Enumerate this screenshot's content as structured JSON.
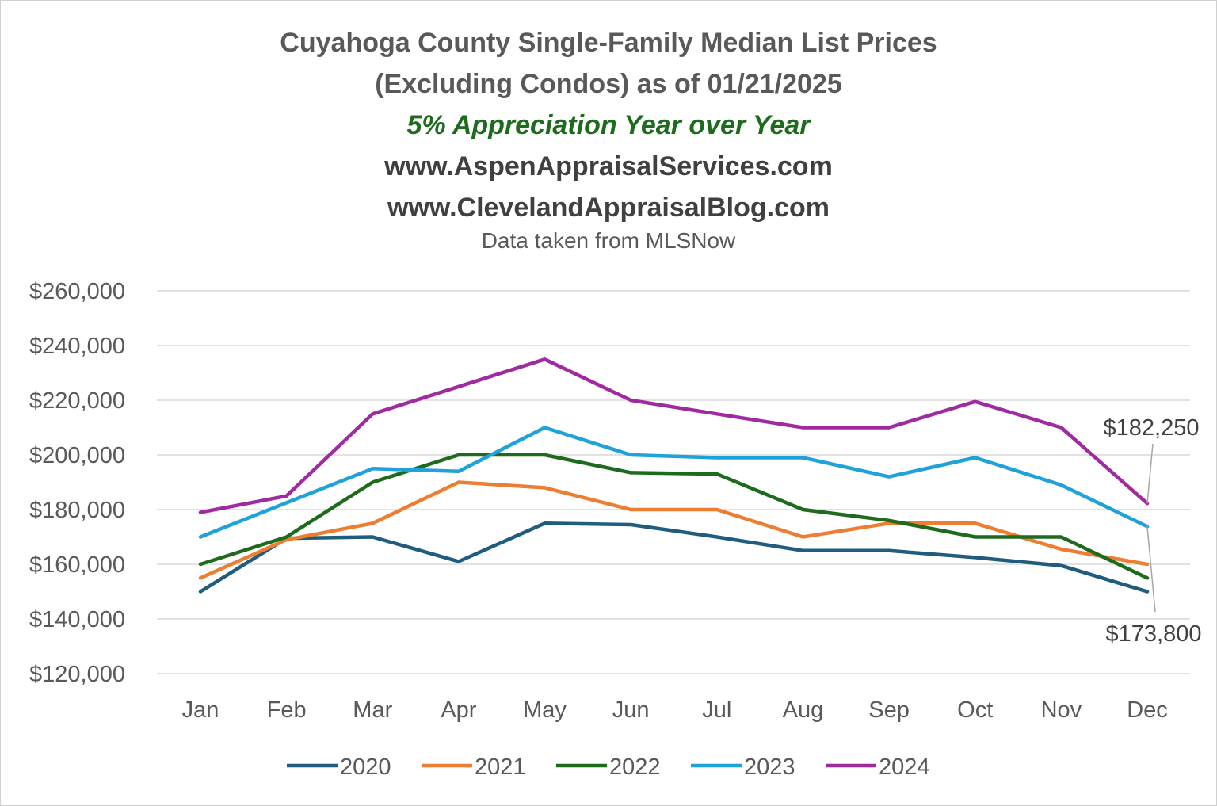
{
  "chart_data": {
    "type": "line",
    "title": "Cuyahoga  County Single-Family Median List Prices",
    "title_line2": "(Excluding Condos) as of 01/21/2025",
    "subtitle": "5% Appreciation Year over Year",
    "website1": "www.AspenAppraisalServices.com",
    "website2": "www.ClevelandAppraisalBlog.com",
    "source": "Data taken from MLSNow",
    "categories": [
      "Jan",
      "Feb",
      "Mar",
      "Apr",
      "May",
      "Jun",
      "Jul",
      "Aug",
      "Sep",
      "Oct",
      "Nov",
      "Dec"
    ],
    "ylim": [
      120000,
      260000
    ],
    "yticks": [
      120000,
      140000,
      160000,
      180000,
      200000,
      220000,
      240000,
      260000
    ],
    "ytick_labels": [
      "$120,000",
      "$140,000",
      "$160,000",
      "$180,000",
      "$200,000",
      "$220,000",
      "$240,000",
      "$260,000"
    ],
    "grid": true,
    "legend_position": "bottom",
    "series": [
      {
        "name": "2020",
        "color": "#1f5c7d",
        "values": [
          150000,
          169500,
          170000,
          161000,
          175000,
          174500,
          170000,
          165000,
          165000,
          162500,
          159500,
          150000
        ]
      },
      {
        "name": "2021",
        "color": "#ed7d31",
        "values": [
          155000,
          169000,
          175000,
          190000,
          188000,
          180000,
          180000,
          170000,
          175000,
          175000,
          165500,
          160000
        ]
      },
      {
        "name": "2022",
        "color": "#1e6b1e",
        "values": [
          160000,
          170000,
          190000,
          200000,
          200000,
          193500,
          193000,
          180000,
          176000,
          170000,
          170000,
          155000
        ]
      },
      {
        "name": "2023",
        "color": "#1ea2d9",
        "values": [
          170000,
          182500,
          195000,
          194000,
          210000,
          200000,
          199000,
          199000,
          192000,
          199000,
          189000,
          173800
        ]
      },
      {
        "name": "2024",
        "color": "#a02ba0",
        "values": [
          179000,
          185000,
          215000,
          225000,
          235000,
          220000,
          215000,
          210000,
          210000,
          219500,
          210000,
          182250
        ]
      }
    ],
    "annotations": [
      {
        "label": "$182,250",
        "series": "2024",
        "category": "Dec"
      },
      {
        "label": "$173,800",
        "series": "2023",
        "category": "Dec"
      }
    ]
  }
}
